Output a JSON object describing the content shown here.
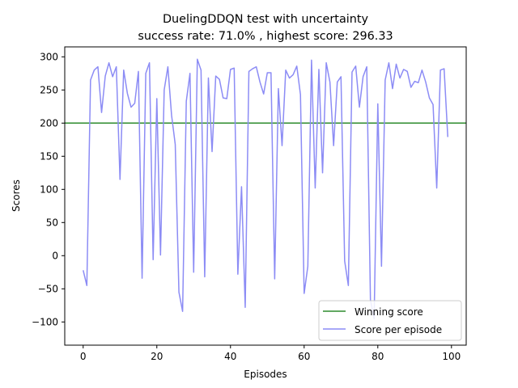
{
  "chart_data": {
    "type": "line",
    "title": "DuelingDDQN test with uncertainty",
    "subtitle": "success rate: 71.0% , highest score: 296.33",
    "xlabel": "Episodes",
    "ylabel": "Scores",
    "xlim": [
      -5,
      104
    ],
    "ylim": [
      -135,
      315
    ],
    "xticks": [
      0,
      20,
      40,
      60,
      80,
      100
    ],
    "yticks": [
      -100,
      -50,
      0,
      50,
      100,
      150,
      200,
      250,
      300
    ],
    "grid": false,
    "legend_position": "lower-right",
    "hlines": [
      {
        "name": "Winning score",
        "y": 200,
        "color": "#2e8b2e"
      }
    ],
    "series": [
      {
        "name": "Score per episode",
        "color": "#8c8cf5",
        "x": [
          0,
          1,
          2,
          3,
          4,
          5,
          6,
          7,
          8,
          9,
          10,
          11,
          12,
          13,
          14,
          15,
          16,
          17,
          18,
          19,
          20,
          21,
          22,
          23,
          24,
          25,
          26,
          27,
          28,
          29,
          30,
          31,
          32,
          33,
          34,
          35,
          36,
          37,
          38,
          39,
          40,
          41,
          42,
          43,
          44,
          45,
          46,
          47,
          48,
          49,
          50,
          51,
          52,
          53,
          54,
          55,
          56,
          57,
          58,
          59,
          60,
          61,
          62,
          63,
          64,
          65,
          66,
          67,
          68,
          69,
          70,
          71,
          72,
          73,
          74,
          75,
          76,
          77,
          78,
          79,
          80,
          81,
          82,
          83,
          84,
          85,
          86,
          87,
          88,
          89,
          90,
          91,
          92,
          93,
          94,
          95,
          96,
          97,
          98,
          99
        ],
        "values": [
          -22,
          -45,
          265,
          280,
          285,
          216,
          271,
          291,
          270,
          285,
          115,
          280,
          245,
          224,
          230,
          278,
          -34,
          275,
          291,
          -6,
          237,
          1,
          250,
          285,
          212,
          168,
          -55,
          -84,
          233,
          275,
          -25,
          296.33,
          280,
          -32,
          268,
          157,
          271,
          266,
          238,
          237,
          281,
          283,
          -28,
          104,
          -78,
          278,
          282,
          285,
          262,
          244,
          276,
          276,
          -35,
          252,
          166,
          280,
          268,
          273,
          286,
          243,
          -57,
          -16,
          295,
          102,
          281,
          125,
          291,
          262,
          166,
          262,
          270,
          -8,
          -45,
          277,
          286,
          224,
          270,
          285,
          -67,
          -95,
          229,
          -16,
          265,
          291,
          252,
          289,
          268,
          281,
          278,
          254,
          263,
          261,
          280,
          262,
          238,
          228,
          102,
          280,
          282,
          179
        ]
      }
    ]
  }
}
